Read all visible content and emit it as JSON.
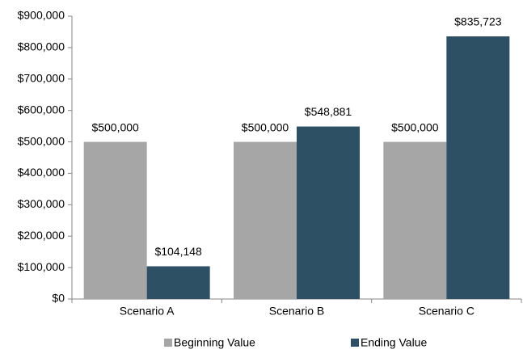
{
  "chart_data": {
    "type": "bar",
    "categories": [
      "Scenario A",
      "Scenario B",
      "Scenario C"
    ],
    "series": [
      {
        "name": "Beginning Value",
        "color": "#a6a6a6",
        "values": [
          500000,
          500000,
          500000
        ],
        "value_labels": [
          "$500,000",
          "$500,000",
          "$500,000"
        ]
      },
      {
        "name": "Ending Value",
        "color": "#2e5064",
        "values": [
          104148,
          548881,
          835723
        ],
        "value_labels": [
          "$104,148",
          "$548,881",
          "$835,723"
        ]
      }
    ],
    "ylim": [
      0,
      900000
    ],
    "yticks": [
      {
        "value": 0,
        "label": "$0"
      },
      {
        "value": 100000,
        "label": "$100,000"
      },
      {
        "value": 200000,
        "label": "$200,000"
      },
      {
        "value": 300000,
        "label": "$300,000"
      },
      {
        "value": 400000,
        "label": "$400,000"
      },
      {
        "value": 500000,
        "label": "$500,000"
      },
      {
        "value": 600000,
        "label": "$600,000"
      },
      {
        "value": 700000,
        "label": "$700,000"
      },
      {
        "value": 800000,
        "label": "$800,000"
      },
      {
        "value": 900000,
        "label": "$900,000"
      }
    ],
    "grid": false,
    "legend": "bottom"
  }
}
